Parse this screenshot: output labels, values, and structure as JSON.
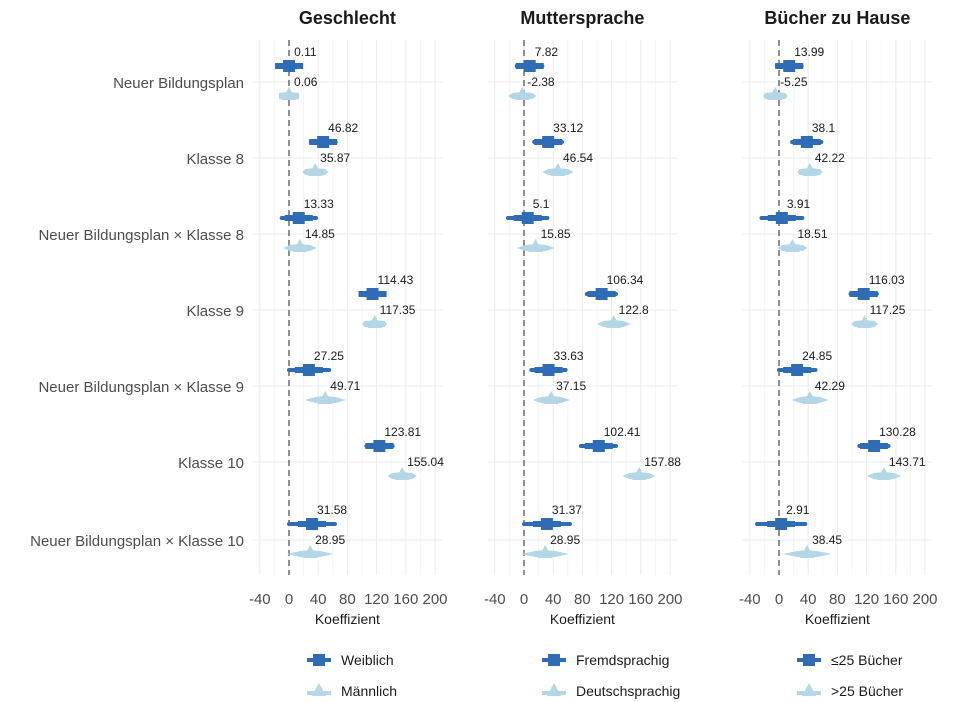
{
  "chart_data": {
    "type": "forest",
    "row_labels": [
      "Neuer Bildungsplan",
      "Klasse 8",
      "Neuer Bildungsplan × Klasse 8",
      "Klasse 9",
      "Neuer Bildungsplan × Klasse 9",
      "Klasse 10",
      "Neuer Bildungsplan × Klasse 10"
    ],
    "xlabel": "Koeffizient",
    "xticks": [
      -40,
      0,
      40,
      80,
      120,
      160,
      200
    ],
    "xticklabels": [
      "-40",
      "0",
      "40",
      "80",
      "120",
      "160",
      "200"
    ],
    "xlim": [
      -50,
      210
    ],
    "reference_line": 0,
    "colors": {
      "group1": "#2e6db5",
      "group2": "#b3d7e6"
    },
    "panels": [
      {
        "title": "Geschlecht",
        "series": [
          {
            "name": "Weiblich",
            "estimates": [
              0.11,
              46.82,
              13.33,
              114.43,
              27.25,
              123.81,
              31.58
            ],
            "labels": [
              "0.11",
              "46.82",
              "13.33",
              "114.43",
              "27.25",
              "123.81",
              "31.58"
            ],
            "ci": [
              [
                -15,
                15
              ],
              [
                30,
                64
              ],
              [
                -10,
                37
              ],
              [
                98,
                131
              ],
              [
                0,
                55
              ],
              [
                106,
                142
              ],
              [
                0,
                63
              ]
            ]
          },
          {
            "name": "Männlich",
            "estimates": [
              0.06,
              35.87,
              14.85,
              117.35,
              49.71,
              155.04,
              28.95
            ],
            "labels": [
              "0.06",
              "35.87",
              "14.85",
              "117.35",
              "49.71",
              "155.04",
              "28.95"
            ],
            "ci": [
              [
                -14,
                14
              ],
              [
                18,
                54
              ],
              [
                -8,
                38
              ],
              [
                100,
                134
              ],
              [
                22,
                78
              ],
              [
                135,
                175
              ],
              [
                -3,
                61
              ]
            ]
          }
        ]
      },
      {
        "title": "Muttersprache",
        "series": [
          {
            "name": "Fremdsprachig",
            "estimates": [
              7.82,
              33.12,
              5.1,
              106.34,
              33.63,
              102.41,
              31.37
            ],
            "labels": [
              "7.82",
              "33.12",
              "5.1",
              "106.34",
              "33.63",
              "102.41",
              "31.37"
            ],
            "ci": [
              [
                -10,
                25
              ],
              [
                14,
                52
              ],
              [
                -22,
                32
              ],
              [
                86,
                126
              ],
              [
                10,
                57
              ],
              [
                78,
                126
              ],
              [
                0,
                63
              ]
            ]
          },
          {
            "name": "Deutschsprachig",
            "estimates": [
              -2.38,
              46.54,
              15.85,
              122.8,
              37.15,
              157.88,
              28.95
            ],
            "labels": [
              "-2.38",
              "46.54",
              "15.85",
              "122.8",
              "37.15",
              "157.88",
              "28.95"
            ],
            "ci": [
              [
                -22,
                17
              ],
              [
                25,
                68
              ],
              [
                -10,
                42
              ],
              [
                100,
                146
              ],
              [
                12,
                63
              ],
              [
                135,
                180
              ],
              [
                -4,
                62
              ]
            ]
          }
        ]
      },
      {
        "title": "Bücher zu Hause",
        "series": [
          {
            "name": "≤25 Bücher",
            "estimates": [
              13.99,
              38.1,
              3.91,
              116.03,
              24.85,
              130.28,
              2.91
            ],
            "labels": [
              "13.99",
              "38.1",
              "3.91",
              "116.03",
              "24.85",
              "130.28",
              "2.91"
            ],
            "ci": [
              [
                -3,
                31
              ],
              [
                18,
                58
              ],
              [
                -24,
                32
              ],
              [
                98,
                134
              ],
              [
                0,
                50
              ],
              [
                110,
                150
              ],
              [
                -30,
                36
              ]
            ]
          },
          {
            "name": ">25 Bücher",
            "estimates": [
              -5.25,
              42.22,
              18.51,
              117.25,
              42.29,
              143.71,
              38.45
            ],
            "labels": [
              "-5.25",
              "42.22",
              "18.51",
              "117.25",
              "42.29",
              "143.71",
              "38.45"
            ],
            "ci": [
              [
                -22,
                12
              ],
              [
                25,
                60
              ],
              [
                -2,
                39
              ],
              [
                99,
                136
              ],
              [
                17,
                68
              ],
              [
                120,
                167
              ],
              [
                5,
                72
              ]
            ]
          }
        ]
      }
    ],
    "legend_position": "bottom"
  }
}
